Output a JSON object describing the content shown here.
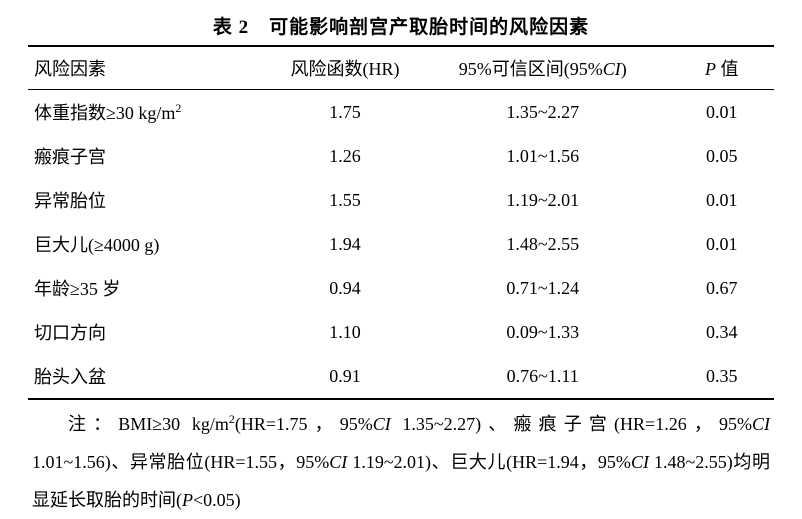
{
  "table": {
    "title": "表 2　可能影响剖宫产取胎时间的风险因素",
    "columns": [
      {
        "label": "风险因素",
        "width": "33%",
        "align": "left"
      },
      {
        "label_html": "风险函数(HR)",
        "width": "19%",
        "align": "center"
      },
      {
        "label_html": "95%可信区间(95%<span class='italic'>CI</span>)",
        "width": "34%",
        "align": "center"
      },
      {
        "label_html": "<span class='italic'>P</span> 值",
        "width": "14%",
        "align": "center"
      }
    ],
    "rows": [
      {
        "factor_html": "体重指数≥30 kg/m<sup>2</sup>",
        "hr": "1.75",
        "ci": "1.35~2.27",
        "p": "0.01"
      },
      {
        "factor_html": "瘢痕子宫",
        "hr": "1.26",
        "ci": "1.01~1.56",
        "p": "0.05"
      },
      {
        "factor_html": "异常胎位",
        "hr": "1.55",
        "ci": "1.19~2.01",
        "p": "0.01"
      },
      {
        "factor_html": "巨大儿(≥4000 g)",
        "hr": "1.94",
        "ci": "1.48~2.55",
        "p": "0.01"
      },
      {
        "factor_html": "年龄≥35 岁",
        "hr": "0.94",
        "ci": "0.71~1.24",
        "p": "0.67"
      },
      {
        "factor_html": "切口方向",
        "hr": "1.10",
        "ci": "0.09~1.33",
        "p": "0.34"
      },
      {
        "factor_html": "胎头入盆",
        "hr": "0.91",
        "ci": "0.76~1.11",
        "p": "0.35"
      }
    ]
  },
  "footnote_html": "注：BMI≥30 kg/m<sup>2</sup>(HR=1.75，95%<span class='italic'>CI</span> 1.35~2.27)、瘢痕子宫(HR=1.26，95%<span class='italic'>CI</span> 1.01~1.56)、异常胎位(HR=1.55，95%<span class='italic'>CI</span> 1.19~2.01)、巨大儿(HR=1.94，95%<span class='italic'>CI</span> 1.48~2.55)均明显延长取胎的时间(<span class='italic'>P</span>&lt;0.05)",
  "styles": {
    "background_color": "#ffffff",
    "text_color": "#000000",
    "border_color": "#000000",
    "title_fontsize": 19,
    "header_fontsize": 18,
    "cell_fontsize": 18,
    "footnote_fontsize": 18,
    "top_border_width": 2,
    "header_border_width": 1.5,
    "bottom_border_width": 2,
    "footnote_line_height": 2.1
  }
}
